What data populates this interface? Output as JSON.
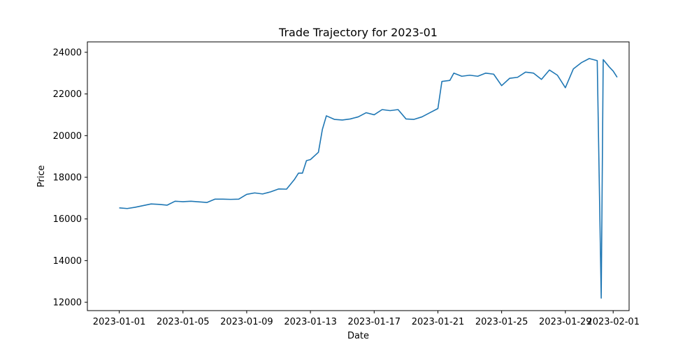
{
  "chart_data": {
    "type": "line",
    "title": "Trade Trajectory for 2023-01",
    "xlabel": "Date",
    "ylabel": "Price",
    "xlim": [
      "2022-12-30",
      "2023-02-02"
    ],
    "ylim": [
      11600,
      24500
    ],
    "x_ticks": [
      "2023-01-01",
      "2023-01-05",
      "2023-01-09",
      "2023-01-13",
      "2023-01-17",
      "2023-01-21",
      "2023-01-25",
      "2023-01-29",
      "2023-02-01"
    ],
    "y_ticks": [
      12000,
      14000,
      16000,
      18000,
      20000,
      22000,
      24000
    ],
    "grid": false,
    "line_color": "#1f77b4",
    "series": [
      {
        "name": "",
        "points": [
          [
            "2023-01-01T00:00",
            16530
          ],
          [
            "2023-01-01T12:00",
            16500
          ],
          [
            "2023-01-02T00:00",
            16560
          ],
          [
            "2023-01-02T12:00",
            16640
          ],
          [
            "2023-01-03T00:00",
            16720
          ],
          [
            "2023-01-03T12:00",
            16700
          ],
          [
            "2023-01-04T00:00",
            16660
          ],
          [
            "2023-01-04T12:00",
            16850
          ],
          [
            "2023-01-05T00:00",
            16830
          ],
          [
            "2023-01-05T12:00",
            16850
          ],
          [
            "2023-01-06T00:00",
            16820
          ],
          [
            "2023-01-06T12:00",
            16790
          ],
          [
            "2023-01-07T00:00",
            16950
          ],
          [
            "2023-01-07T12:00",
            16950
          ],
          [
            "2023-01-08T00:00",
            16940
          ],
          [
            "2023-01-08T12:00",
            16950
          ],
          [
            "2023-01-09T00:00",
            17180
          ],
          [
            "2023-01-09T12:00",
            17250
          ],
          [
            "2023-01-10T00:00",
            17200
          ],
          [
            "2023-01-10T12:00",
            17300
          ],
          [
            "2023-01-11T00:00",
            17440
          ],
          [
            "2023-01-11T12:00",
            17430
          ],
          [
            "2023-01-12T00:00",
            17900
          ],
          [
            "2023-01-12T06:00",
            18200
          ],
          [
            "2023-01-12T12:00",
            18200
          ],
          [
            "2023-01-12T18:00",
            18800
          ],
          [
            "2023-01-13T00:00",
            18850
          ],
          [
            "2023-01-13T12:00",
            19200
          ],
          [
            "2023-01-13T18:00",
            20300
          ],
          [
            "2023-01-14T00:00",
            20950
          ],
          [
            "2023-01-14T12:00",
            20780
          ],
          [
            "2023-01-15T00:00",
            20750
          ],
          [
            "2023-01-15T12:00",
            20800
          ],
          [
            "2023-01-16T00:00",
            20900
          ],
          [
            "2023-01-16T12:00",
            21100
          ],
          [
            "2023-01-17T00:00",
            21000
          ],
          [
            "2023-01-17T12:00",
            21250
          ],
          [
            "2023-01-18T00:00",
            21200
          ],
          [
            "2023-01-18T12:00",
            21250
          ],
          [
            "2023-01-19T00:00",
            20800
          ],
          [
            "2023-01-19T12:00",
            20780
          ],
          [
            "2023-01-20T00:00",
            20900
          ],
          [
            "2023-01-20T12:00",
            21100
          ],
          [
            "2023-01-21T00:00",
            21300
          ],
          [
            "2023-01-21T06:00",
            22600
          ],
          [
            "2023-01-21T18:00",
            22650
          ],
          [
            "2023-01-22T00:00",
            23000
          ],
          [
            "2023-01-22T12:00",
            22850
          ],
          [
            "2023-01-23T00:00",
            22900
          ],
          [
            "2023-01-23T12:00",
            22850
          ],
          [
            "2023-01-24T00:00",
            23000
          ],
          [
            "2023-01-24T12:00",
            22950
          ],
          [
            "2023-01-25T00:00",
            22400
          ],
          [
            "2023-01-25T12:00",
            22750
          ],
          [
            "2023-01-26T00:00",
            22800
          ],
          [
            "2023-01-26T12:00",
            23050
          ],
          [
            "2023-01-27T00:00",
            23000
          ],
          [
            "2023-01-27T12:00",
            22700
          ],
          [
            "2023-01-28T00:00",
            23150
          ],
          [
            "2023-01-28T12:00",
            22900
          ],
          [
            "2023-01-29T00:00",
            22300
          ],
          [
            "2023-01-29T12:00",
            23200
          ],
          [
            "2023-01-30T00:00",
            23500
          ],
          [
            "2023-01-30T12:00",
            23700
          ],
          [
            "2023-01-31T00:00",
            23600
          ],
          [
            "2023-01-31T06:00",
            12200
          ],
          [
            "2023-01-31T09:00",
            23650
          ],
          [
            "2023-01-31T18:00",
            23300
          ],
          [
            "2023-02-01T00:00",
            23100
          ],
          [
            "2023-02-01T06:00",
            22800
          ]
        ]
      }
    ]
  }
}
